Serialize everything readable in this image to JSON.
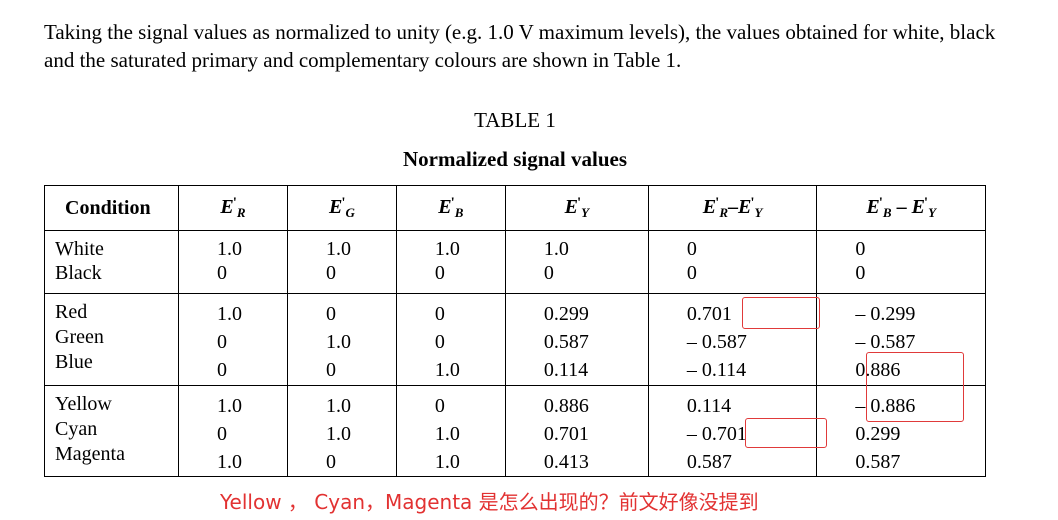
{
  "intro_text": "Taking the signal values as normalized to unity (e.g. 1.0 V maximum levels), the values obtained for white, black and the saturated primary and complementary colours are shown in Table 1.",
  "table_number": "TABLE 1",
  "table_title": "Normalized signal values",
  "headers": {
    "condition": "Condition",
    "er": {
      "main": "E",
      "sub": "R",
      "mark": "'"
    },
    "eg": {
      "main": "E",
      "sub": "G",
      "mark": "'"
    },
    "eb": {
      "main": "E",
      "sub": "B",
      "mark": "'"
    },
    "ey": {
      "main": "E",
      "sub": "Y",
      "mark": "'"
    },
    "ery": {
      "a": "E",
      "a_sub": "R",
      "a_mark": "'",
      "op": "–",
      "b": "E",
      "b_sub": "Y",
      "b_mark": "'"
    },
    "eby": {
      "a": "E",
      "a_sub": "B",
      "a_mark": "'",
      "op": "–",
      "b": "E",
      "b_sub": "Y",
      "b_mark": "'"
    }
  },
  "groups": [
    {
      "conditions": [
        "White",
        "Black"
      ],
      "er": [
        "1.0",
        "0"
      ],
      "eg": [
        "1.0",
        "0"
      ],
      "eb": [
        "1.0",
        "0"
      ],
      "ey": [
        "1.0",
        "0"
      ],
      "ery": [
        "0",
        "0"
      ],
      "eby": [
        "0",
        "0"
      ]
    },
    {
      "conditions": [
        "Red",
        "Green",
        "Blue"
      ],
      "er": [
        "1.0",
        "0",
        "0"
      ],
      "eg": [
        "0",
        "1.0",
        "0"
      ],
      "eb": [
        "0",
        "0",
        "1.0"
      ],
      "ey": [
        "0.299",
        "0.587",
        "0.114"
      ],
      "ery": [
        "0.701",
        "– 0.587",
        "– 0.114"
      ],
      "eby": [
        "– 0.299",
        "– 0.587",
        "0.886"
      ]
    },
    {
      "conditions": [
        "Yellow",
        "Cyan",
        "Magenta"
      ],
      "er": [
        "1.0",
        "0",
        "1.0"
      ],
      "eg": [
        "1.0",
        "1.0",
        "0"
      ],
      "eb": [
        "0",
        "1.0",
        "1.0"
      ],
      "ey": [
        "0.886",
        "0.701",
        "0.413"
      ],
      "ery": [
        "0.114",
        "– 0.701",
        "0.587"
      ],
      "eby": [
        "– 0.886",
        "0.299",
        "0.587"
      ]
    }
  ],
  "annotation_text": "Yellow ， Cyan，Magenta 是怎么出现的？前文好像没提到",
  "annotation_color": "#e23232"
}
